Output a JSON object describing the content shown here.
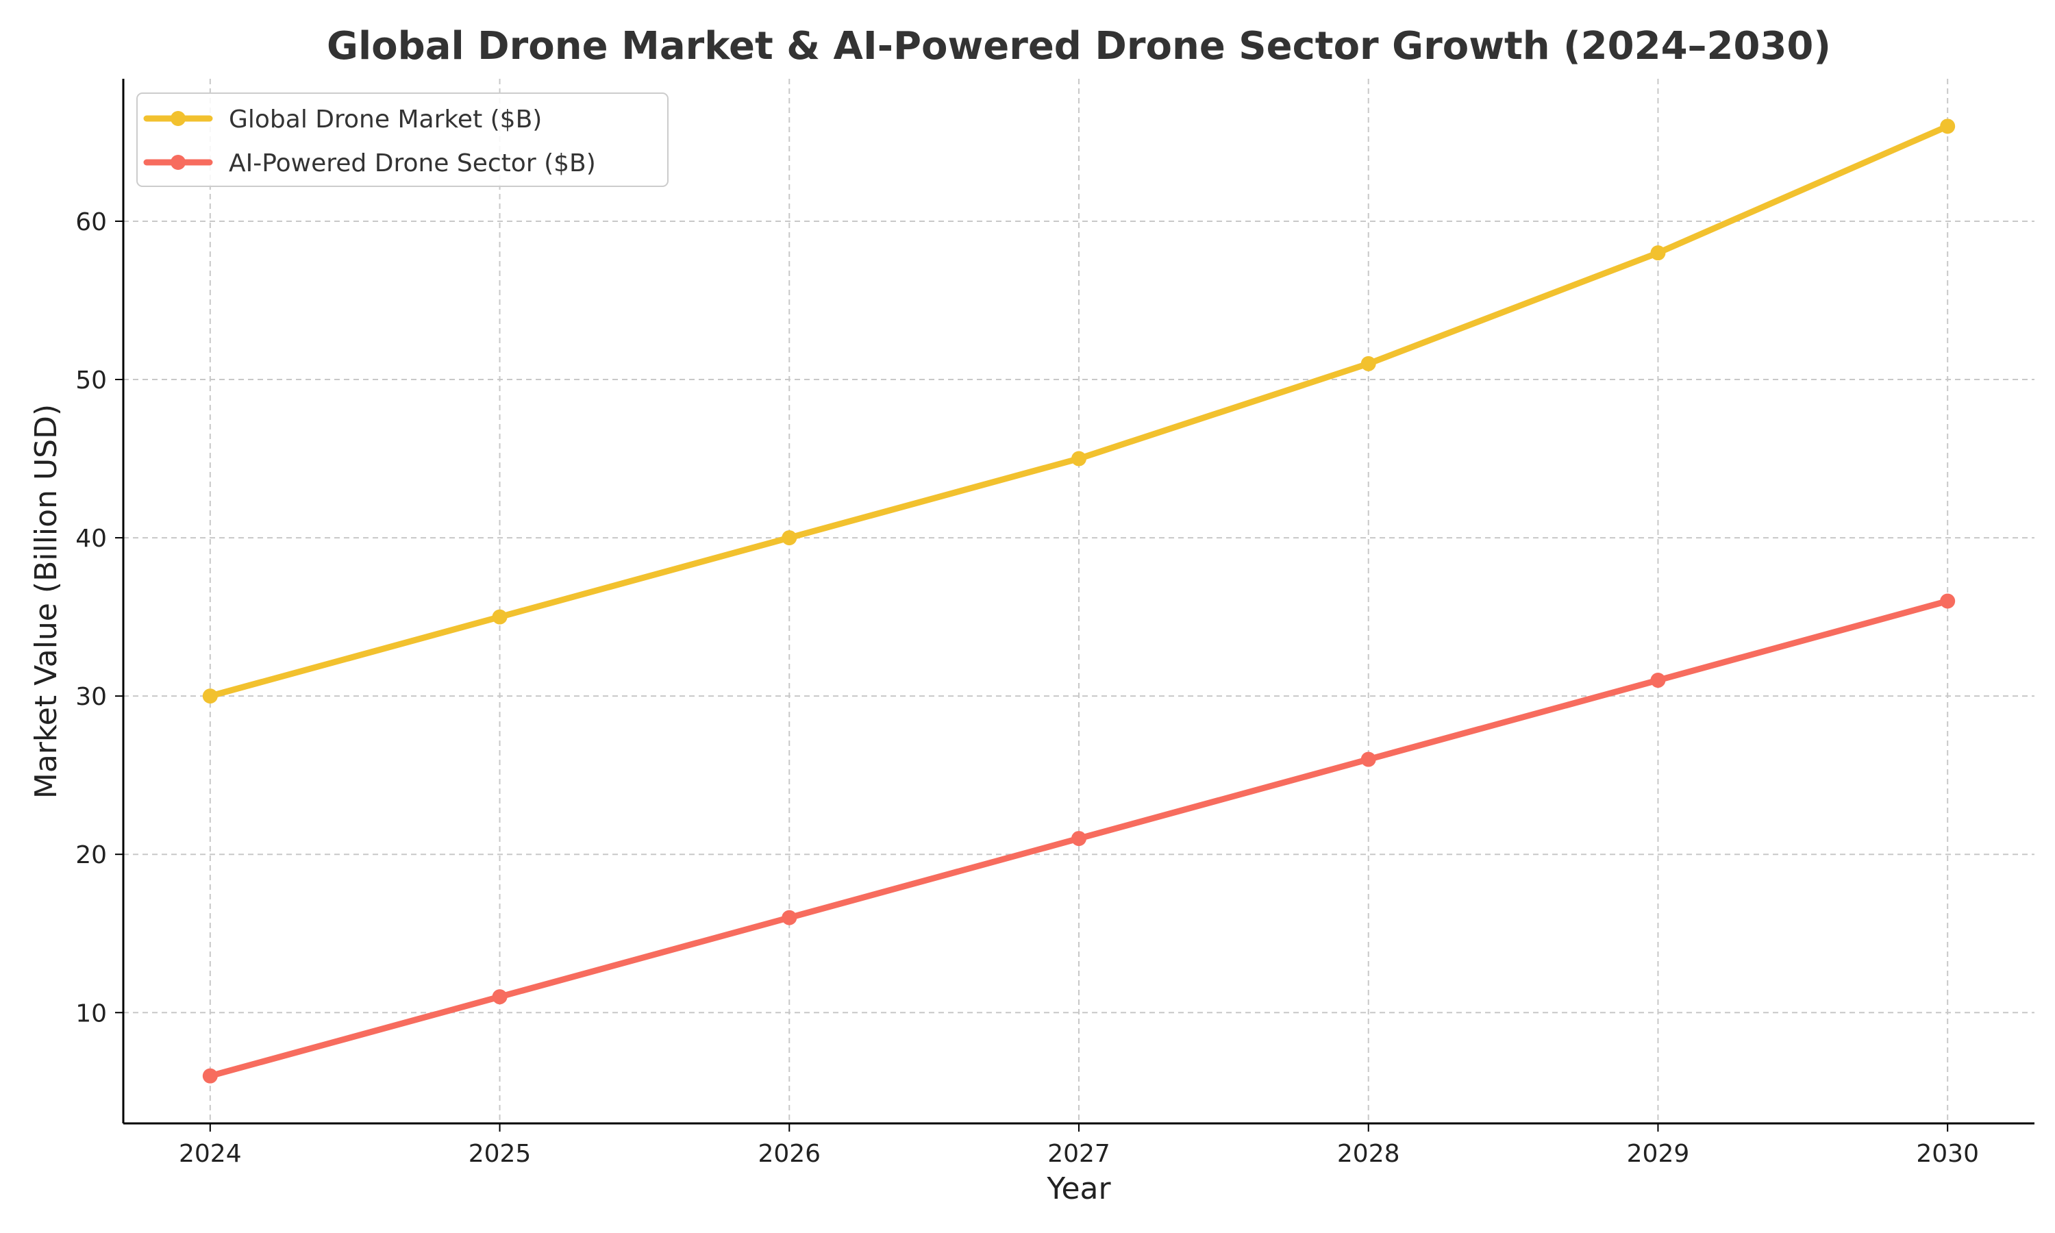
{
  "chart_data": {
    "type": "line",
    "title": "Global Drone Market & AI-Powered Drone Sector Growth (2024–2030)",
    "xlabel": "Year",
    "ylabel": "Market Value (Billion USD)",
    "x": [
      2024,
      2025,
      2026,
      2027,
      2028,
      2029,
      2030
    ],
    "x_tick_labels": [
      "2024",
      "2025",
      "2026",
      "2027",
      "2028",
      "2029",
      "2030"
    ],
    "y_ticks": [
      10,
      20,
      30,
      40,
      50,
      60
    ],
    "y_tick_labels": [
      "10",
      "20",
      "30",
      "40",
      "50",
      "60"
    ],
    "xlim": [
      2023.7,
      2030.3
    ],
    "ylim": [
      3,
      69
    ],
    "grid": true,
    "legend_position": "top-left",
    "series": [
      {
        "name": "Global Drone Market ($B)",
        "color": "#F2C12E",
        "values": [
          30,
          35,
          40,
          45,
          51,
          58,
          66
        ]
      },
      {
        "name": "AI-Powered Drone Sector ($B)",
        "color": "#F76C5E",
        "values": [
          6,
          11,
          16,
          21,
          26,
          31,
          36
        ]
      }
    ]
  }
}
